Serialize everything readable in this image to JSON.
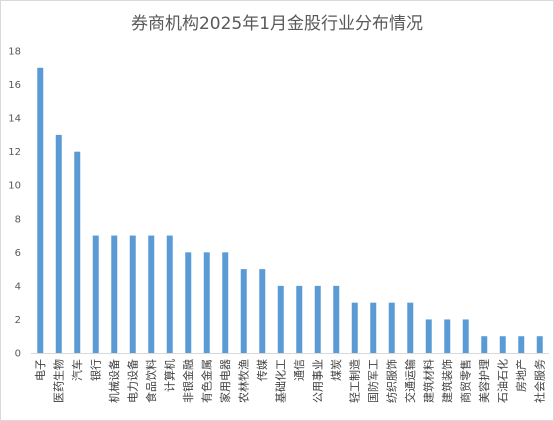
{
  "chart_data": {
    "type": "bar",
    "title": "券商机构2025年1月金股行业分布情况",
    "xlabel": "",
    "ylabel": "",
    "ylim": [
      0,
      18
    ],
    "yticks": [
      0,
      2,
      4,
      6,
      8,
      10,
      12,
      14,
      16,
      18
    ],
    "grid": false,
    "legend": "none",
    "bar_color": "#5b9bd5",
    "categories": [
      "电子",
      "医药生物",
      "汽车",
      "银行",
      "机械设备",
      "电力设备",
      "食品饮料",
      "计算机",
      "非银金融",
      "有色金属",
      "家用电器",
      "农林牧渔",
      "传媒",
      "基础化工",
      "通信",
      "公用事业",
      "煤炭",
      "轻工制造",
      "国防军工",
      "纺织服饰",
      "交通运输",
      "建筑材料",
      "建筑装饰",
      "商贸零售",
      "美容护理",
      "石油石化",
      "房地产",
      "社会服务"
    ],
    "values": [
      17,
      13,
      12,
      7,
      7,
      7,
      7,
      7,
      6,
      6,
      6,
      5,
      5,
      4,
      4,
      4,
      4,
      3,
      3,
      3,
      3,
      2,
      2,
      2,
      1,
      1,
      1,
      1
    ]
  }
}
